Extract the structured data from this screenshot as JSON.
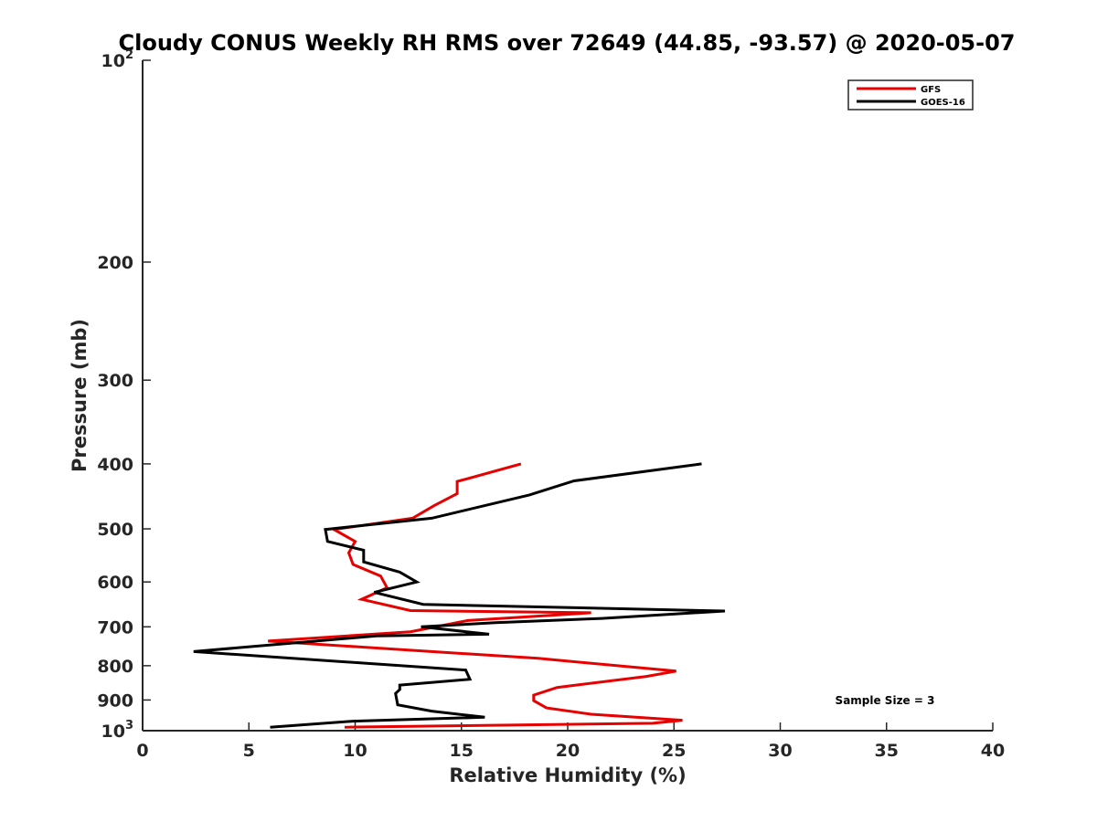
{
  "chart_data": {
    "type": "line",
    "title": "Cloudy CONUS Weekly RH RMS over 72649 (44.85, -93.57) @ 2020-05-07",
    "xlabel": "Relative Humidity (%)",
    "ylabel": "Pressure (mb)",
    "xlim": [
      0,
      40
    ],
    "ylim": [
      100,
      1000
    ],
    "y_scale": "log",
    "y_reversed": true,
    "grid": false,
    "legend_position": "top-right",
    "x_ticks": [
      0,
      5,
      10,
      15,
      20,
      25,
      30,
      35,
      40
    ],
    "x_tick_labels": [
      "0",
      "5",
      "10",
      "15",
      "20",
      "25",
      "30",
      "35",
      "40"
    ],
    "y_ticks": [
      100,
      200,
      300,
      400,
      500,
      600,
      700,
      800,
      900,
      1000
    ],
    "y_tick_labels": [
      {
        "base": "10",
        "sup": "2"
      },
      {
        "base": "200"
      },
      {
        "base": "300"
      },
      {
        "base": "400"
      },
      {
        "base": "500"
      },
      {
        "base": "600"
      },
      {
        "base": "700"
      },
      {
        "base": "800"
      },
      {
        "base": "900"
      },
      {
        "base": "10",
        "sup": "3"
      }
    ],
    "annotation": "Sample Size = 3",
    "series": [
      {
        "name": "GFS",
        "color": "#e60000",
        "points": [
          {
            "x": 17.8,
            "y": 400
          },
          {
            "x": 14.8,
            "y": 425
          },
          {
            "x": 14.8,
            "y": 443
          },
          {
            "x": 13.7,
            "y": 462
          },
          {
            "x": 12.7,
            "y": 482
          },
          {
            "x": 9.0,
            "y": 501
          },
          {
            "x": 10.0,
            "y": 522
          },
          {
            "x": 9.7,
            "y": 543
          },
          {
            "x": 9.9,
            "y": 565
          },
          {
            "x": 11.2,
            "y": 588
          },
          {
            "x": 11.5,
            "y": 612
          },
          {
            "x": 10.3,
            "y": 637
          },
          {
            "x": 12.6,
            "y": 662
          },
          {
            "x": 21.1,
            "y": 667
          },
          {
            "x": 15.3,
            "y": 685
          },
          {
            "x": 12.6,
            "y": 712
          },
          {
            "x": 5.9,
            "y": 735
          },
          {
            "x": 18.6,
            "y": 780
          },
          {
            "x": 25.1,
            "y": 815
          },
          {
            "x": 23.7,
            "y": 830
          },
          {
            "x": 19.5,
            "y": 862
          },
          {
            "x": 18.4,
            "y": 885
          },
          {
            "x": 18.4,
            "y": 902
          },
          {
            "x": 19.0,
            "y": 925
          },
          {
            "x": 21.1,
            "y": 945
          },
          {
            "x": 25.4,
            "y": 965
          },
          {
            "x": 24.0,
            "y": 975
          },
          {
            "x": 9.5,
            "y": 988
          }
        ]
      },
      {
        "name": "GOES-16",
        "color": "#000000",
        "points": [
          {
            "x": 26.3,
            "y": 400
          },
          {
            "x": 20.3,
            "y": 424
          },
          {
            "x": 18.2,
            "y": 445
          },
          {
            "x": 13.6,
            "y": 482
          },
          {
            "x": 8.6,
            "y": 501
          },
          {
            "x": 8.7,
            "y": 522
          },
          {
            "x": 10.4,
            "y": 538
          },
          {
            "x": 10.4,
            "y": 560
          },
          {
            "x": 12.1,
            "y": 580
          },
          {
            "x": 12.9,
            "y": 600
          },
          {
            "x": 10.9,
            "y": 622
          },
          {
            "x": 13.2,
            "y": 648
          },
          {
            "x": 27.4,
            "y": 663
          },
          {
            "x": 21.6,
            "y": 680
          },
          {
            "x": 16.6,
            "y": 690
          },
          {
            "x": 13.1,
            "y": 700
          },
          {
            "x": 16.3,
            "y": 718
          },
          {
            "x": 11.0,
            "y": 722
          },
          {
            "x": 2.4,
            "y": 762
          },
          {
            "x": 15.2,
            "y": 812
          },
          {
            "x": 15.4,
            "y": 838
          },
          {
            "x": 12.1,
            "y": 855
          },
          {
            "x": 12.1,
            "y": 868
          },
          {
            "x": 11.9,
            "y": 880
          },
          {
            "x": 12.0,
            "y": 915
          },
          {
            "x": 13.6,
            "y": 935
          },
          {
            "x": 16.1,
            "y": 955
          },
          {
            "x": 9.9,
            "y": 968
          },
          {
            "x": 6.0,
            "y": 988
          }
        ]
      }
    ]
  }
}
